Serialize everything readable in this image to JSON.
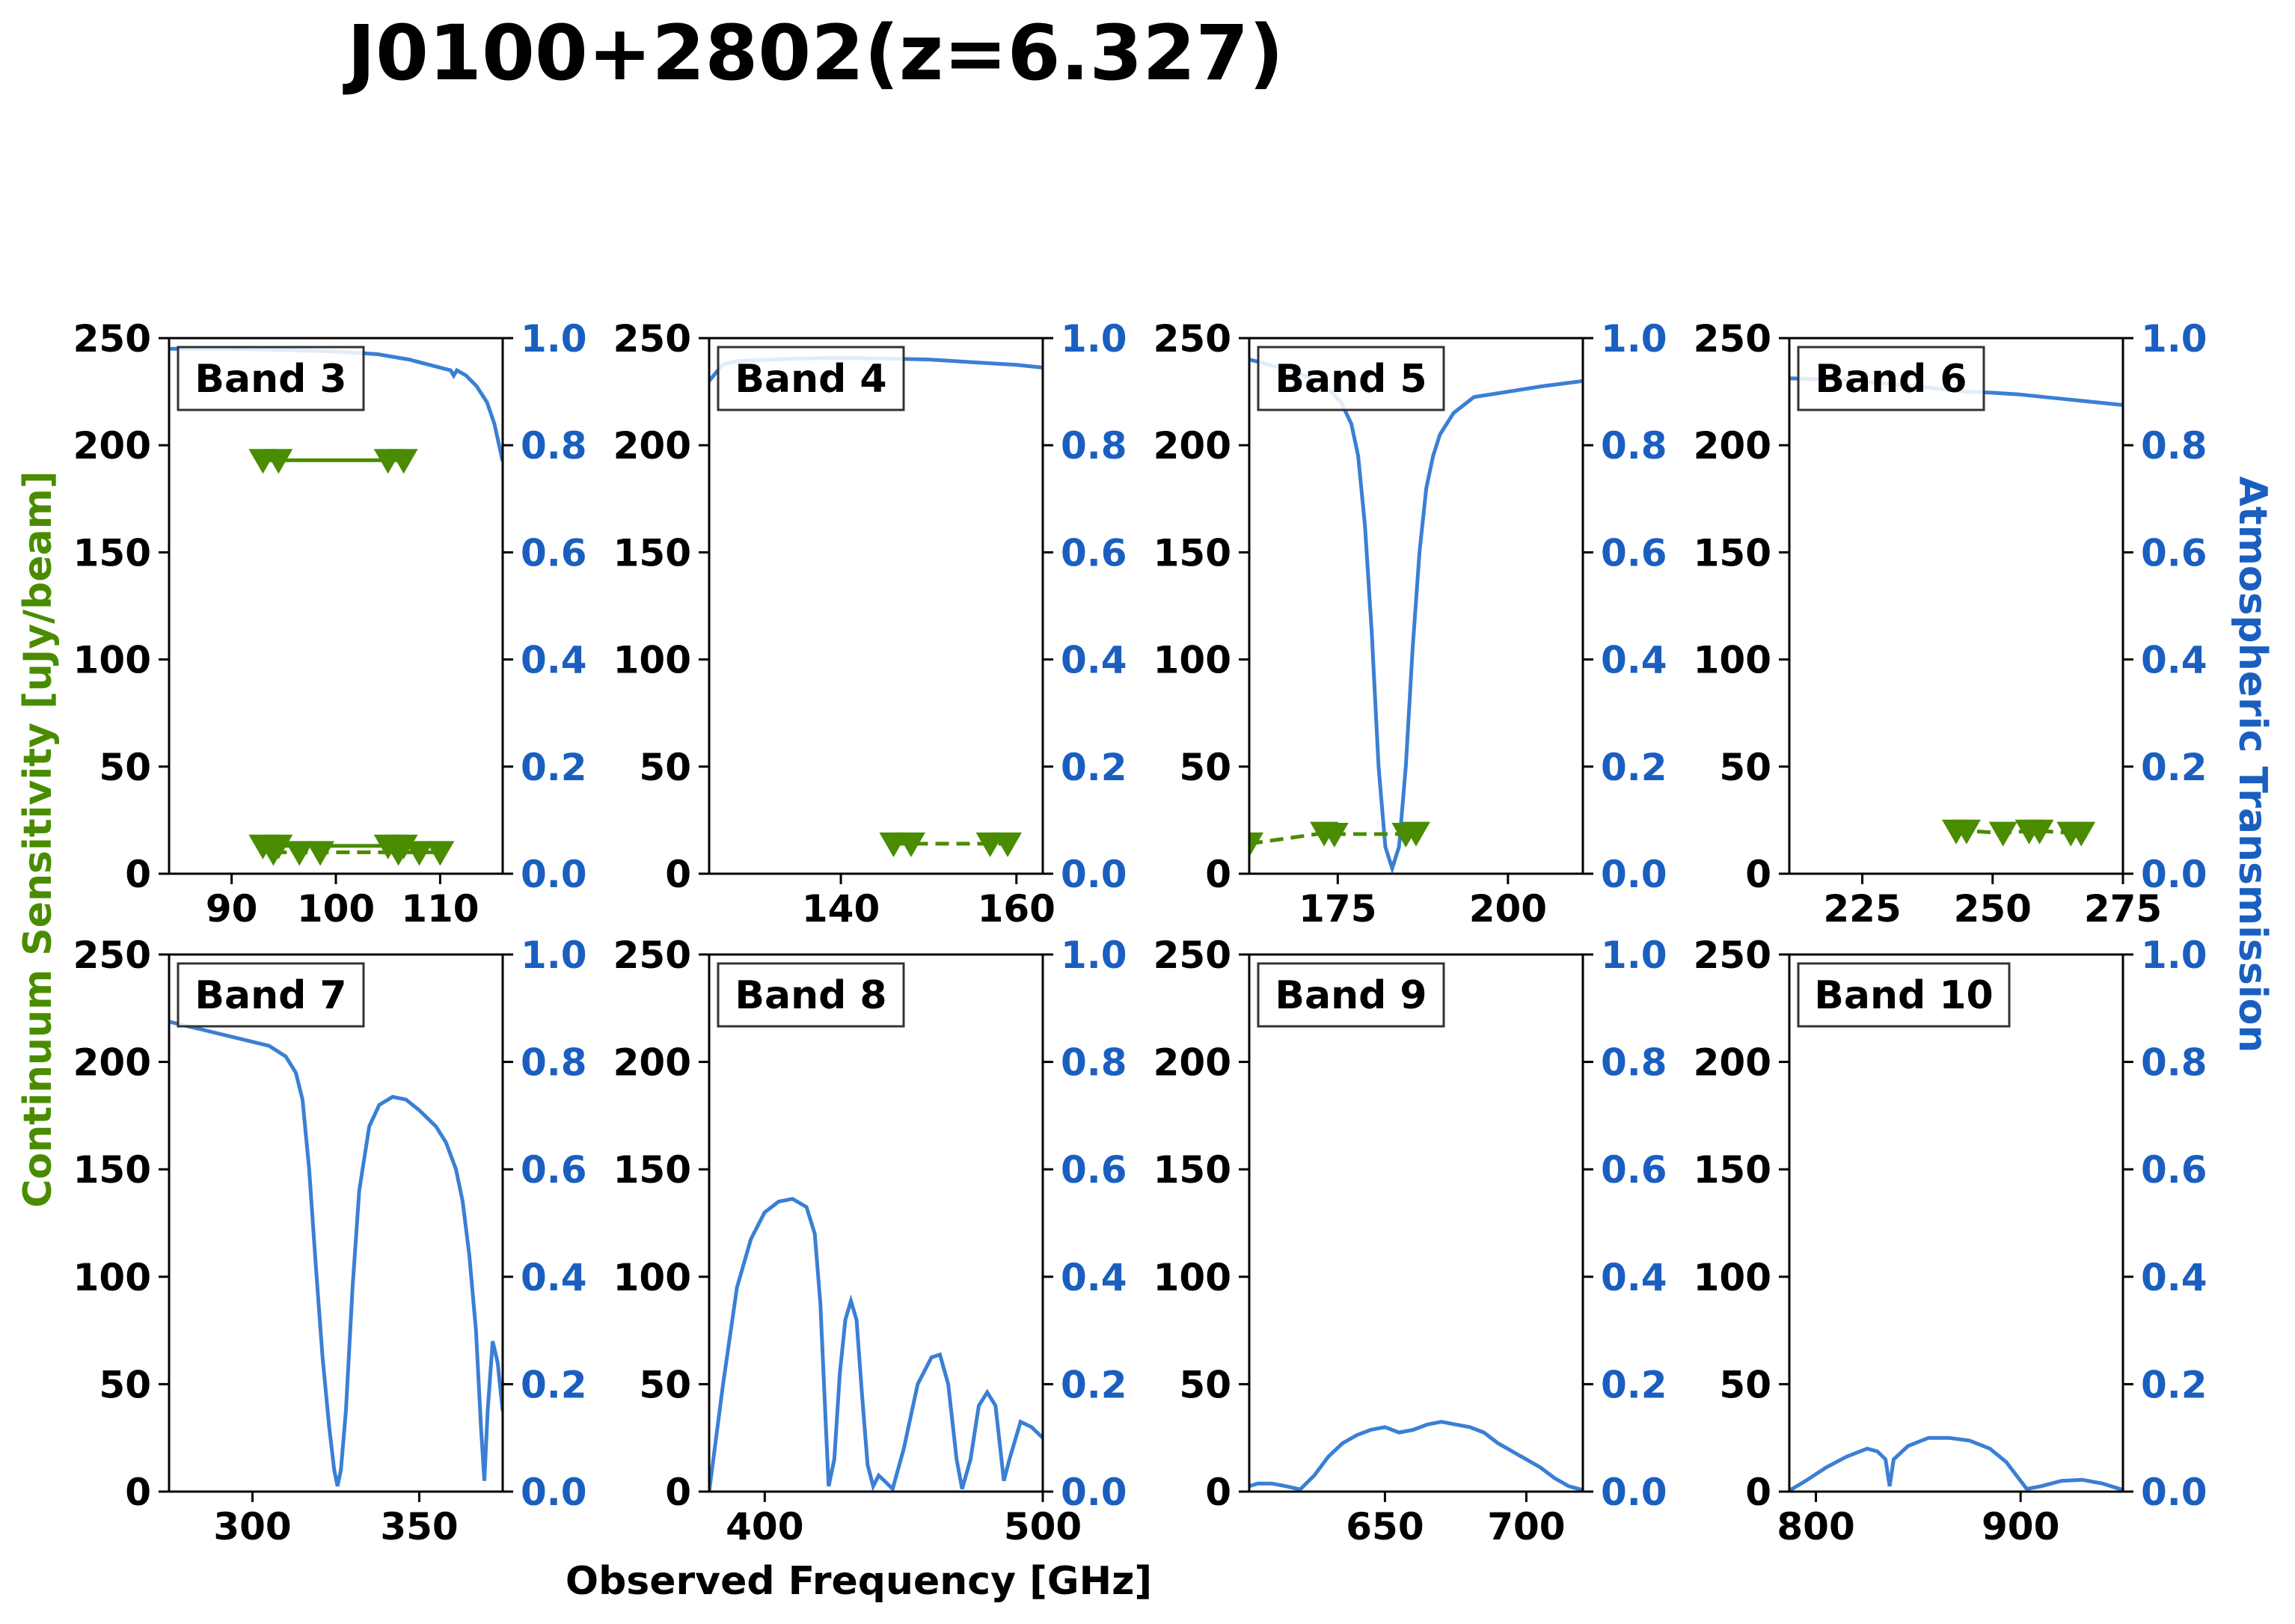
{
  "figure": {
    "title": "J0100+2802(z=6.327)",
    "xlabel": "Observed Frequency [GHz]",
    "ylabel_left": "Continuum Sensitivity [uJy/beam]",
    "ylabel_right": "Atmospheric Transmission",
    "colors": {
      "sensitivity": "#4a8c00",
      "transmission": "#3a7fd4",
      "right_axis": "#1a5fc0"
    }
  },
  "chart_data": [
    {
      "type": "line",
      "band_label": "Band 3",
      "xlim": [
        84,
        116
      ],
      "xticks": [
        90,
        100,
        110
      ],
      "ylim": [
        0,
        250
      ],
      "yticks": [
        0,
        50,
        100,
        150,
        200,
        250
      ],
      "y2lim": [
        0,
        1.0
      ],
      "y2ticks": [
        "0.0",
        "0.2",
        "0.4",
        "0.6",
        "0.8",
        "1.0"
      ],
      "transmission": [
        [
          84,
          0.98
        ],
        [
          90,
          0.98
        ],
        [
          95,
          0.978
        ],
        [
          100,
          0.975
        ],
        [
          104,
          0.97
        ],
        [
          107,
          0.96
        ],
        [
          109,
          0.95
        ],
        [
          110,
          0.945
        ],
        [
          111,
          0.94
        ],
        [
          111.3,
          0.93
        ],
        [
          111.6,
          0.94
        ],
        [
          112.5,
          0.93
        ],
        [
          113.5,
          0.91
        ],
        [
          114.5,
          0.88
        ],
        [
          115.2,
          0.84
        ],
        [
          116,
          0.77
        ]
      ],
      "sensitivity_series": [
        {
          "style": "solid",
          "points": [
            [
              93,
              193
            ],
            [
              94.5,
              193
            ],
            [
              105,
              193
            ],
            [
              106.5,
              193
            ]
          ]
        },
        {
          "style": "solid",
          "points": [
            [
              93,
              13
            ],
            [
              94.5,
              13
            ],
            [
              105,
              13
            ],
            [
              106.5,
              13
            ]
          ]
        },
        {
          "style": "dashed",
          "points": [
            [
              94,
              10
            ],
            [
              96.5,
              10
            ],
            [
              98.5,
              10
            ],
            [
              106,
              10
            ],
            [
              108,
              10
            ],
            [
              110,
              10
            ]
          ]
        }
      ]
    },
    {
      "type": "line",
      "band_label": "Band 4",
      "xlim": [
        125,
        163
      ],
      "xticks": [
        140,
        160
      ],
      "ylim": [
        0,
        250
      ],
      "yticks": [
        0,
        50,
        100,
        150,
        200,
        250
      ],
      "y2lim": [
        0,
        1.0
      ],
      "y2ticks": [
        "0.0",
        "0.2",
        "0.4",
        "0.6",
        "0.8",
        "1.0"
      ],
      "transmission": [
        [
          125,
          0.92
        ],
        [
          126.5,
          0.95
        ],
        [
          128,
          0.957
        ],
        [
          135,
          0.962
        ],
        [
          140,
          0.963
        ],
        [
          145,
          0.962
        ],
        [
          150,
          0.96
        ],
        [
          155,
          0.955
        ],
        [
          160,
          0.95
        ],
        [
          163,
          0.945
        ]
      ],
      "sensitivity_series": [
        {
          "style": "dashed",
          "points": [
            [
              146,
              14
            ],
            [
              148,
              14
            ],
            [
              157,
              14
            ],
            [
              159,
              14
            ]
          ]
        }
      ]
    },
    {
      "type": "line",
      "band_label": "Band 5",
      "xlim": [
        162,
        211
      ],
      "xticks": [
        175,
        200
      ],
      "ylim": [
        0,
        250
      ],
      "yticks": [
        0,
        50,
        100,
        150,
        200,
        250
      ],
      "y2lim": [
        0,
        1.0
      ],
      "y2ticks": [
        "0.0",
        "0.2",
        "0.4",
        "0.6",
        "0.8",
        "1.0"
      ],
      "transmission": [
        [
          162,
          0.96
        ],
        [
          165,
          0.95
        ],
        [
          168,
          0.94
        ],
        [
          170,
          0.93
        ],
        [
          172,
          0.92
        ],
        [
          174,
          0.9
        ],
        [
          175.5,
          0.88
        ],
        [
          177,
          0.84
        ],
        [
          178,
          0.78
        ],
        [
          179,
          0.65
        ],
        [
          180,
          0.45
        ],
        [
          181,
          0.2
        ],
        [
          182,
          0.05
        ],
        [
          183,
          0.01
        ],
        [
          184,
          0.05
        ],
        [
          185,
          0.2
        ],
        [
          186,
          0.42
        ],
        [
          187,
          0.6
        ],
        [
          188,
          0.72
        ],
        [
          189,
          0.78
        ],
        [
          190,
          0.82
        ],
        [
          192,
          0.86
        ],
        [
          195,
          0.89
        ],
        [
          200,
          0.9
        ],
        [
          205,
          0.91
        ],
        [
          208,
          0.915
        ],
        [
          211,
          0.92
        ]
      ],
      "sensitivity_series": [
        {
          "style": "dashed",
          "points": [
            [
              162,
              14
            ],
            [
              173,
              19
            ],
            [
              174.5,
              18.5
            ],
            [
              185,
              18.5
            ],
            [
              186.5,
              19
            ]
          ]
        }
      ]
    },
    {
      "type": "line",
      "band_label": "Band 6",
      "xlim": [
        211,
        275
      ],
      "xticks": [
        225,
        250,
        275
      ],
      "ylim": [
        0,
        250
      ],
      "yticks": [
        0,
        50,
        100,
        150,
        200,
        250
      ],
      "y2lim": [
        0,
        1.0
      ],
      "y2ticks": [
        "0.0",
        "0.2",
        "0.4",
        "0.6",
        "0.8",
        "1.0"
      ],
      "transmission": [
        [
          211,
          0.925
        ],
        [
          220,
          0.922
        ],
        [
          230,
          0.915
        ],
        [
          235,
          0.91
        ],
        [
          240,
          0.905
        ],
        [
          245,
          0.9
        ],
        [
          250,
          0.898
        ],
        [
          255,
          0.895
        ],
        [
          260,
          0.89
        ],
        [
          265,
          0.885
        ],
        [
          270,
          0.88
        ],
        [
          275,
          0.875
        ]
      ],
      "sensitivity_series": [
        {
          "style": "dashed",
          "points": [
            [
              243,
              20
            ],
            [
              245,
              20
            ],
            [
              252,
              19
            ],
            [
              257,
              20
            ],
            [
              259,
              20
            ],
            [
              265,
              19
            ],
            [
              267,
              19
            ]
          ]
        }
      ]
    },
    {
      "type": "line",
      "band_label": "Band 7",
      "xlim": [
        275,
        375
      ],
      "xticks": [
        300,
        350
      ],
      "ylim": [
        0,
        250
      ],
      "yticks": [
        0,
        50,
        100,
        150,
        200,
        250
      ],
      "y2lim": [
        0,
        1.0
      ],
      "y2ticks": [
        "0.0",
        "0.2",
        "0.4",
        "0.6",
        "0.8",
        "1.0"
      ],
      "transmission": [
        [
          275,
          0.875
        ],
        [
          285,
          0.86
        ],
        [
          295,
          0.845
        ],
        [
          305,
          0.83
        ],
        [
          310,
          0.81
        ],
        [
          313,
          0.78
        ],
        [
          315,
          0.73
        ],
        [
          317,
          0.6
        ],
        [
          319,
          0.42
        ],
        [
          321,
          0.25
        ],
        [
          323,
          0.12
        ],
        [
          324.5,
          0.04
        ],
        [
          325.5,
          0.01
        ],
        [
          326.5,
          0.04
        ],
        [
          328,
          0.15
        ],
        [
          330,
          0.38
        ],
        [
          332,
          0.56
        ],
        [
          335,
          0.68
        ],
        [
          338,
          0.72
        ],
        [
          342,
          0.735
        ],
        [
          346,
          0.73
        ],
        [
          350,
          0.71
        ],
        [
          355,
          0.68
        ],
        [
          358,
          0.65
        ],
        [
          361,
          0.6
        ],
        [
          363,
          0.54
        ],
        [
          365,
          0.44
        ],
        [
          367,
          0.3
        ],
        [
          368.5,
          0.12
        ],
        [
          369.5,
          0.02
        ],
        [
          370.5,
          0.15
        ],
        [
          372,
          0.28
        ],
        [
          373.5,
          0.24
        ],
        [
          375,
          0.15
        ]
      ],
      "sensitivity_series": []
    },
    {
      "type": "line",
      "band_label": "Band 8",
      "xlim": [
        380,
        500
      ],
      "xticks": [
        400,
        500
      ],
      "ylim": [
        0,
        250
      ],
      "yticks": [
        0,
        50,
        100,
        150,
        200,
        250
      ],
      "y2lim": [
        0,
        1.0
      ],
      "y2ticks": [
        "0.0",
        "0.2",
        "0.4",
        "0.6",
        "0.8",
        "1.0"
      ],
      "transmission": [
        [
          380,
          0.0
        ],
        [
          385,
          0.2
        ],
        [
          390,
          0.38
        ],
        [
          395,
          0.47
        ],
        [
          400,
          0.52
        ],
        [
          405,
          0.54
        ],
        [
          410,
          0.545
        ],
        [
          415,
          0.53
        ],
        [
          418,
          0.48
        ],
        [
          420,
          0.35
        ],
        [
          422,
          0.12
        ],
        [
          423,
          0.01
        ],
        [
          425,
          0.06
        ],
        [
          427,
          0.22
        ],
        [
          429,
          0.32
        ],
        [
          431,
          0.355
        ],
        [
          433,
          0.32
        ],
        [
          435,
          0.18
        ],
        [
          437,
          0.05
        ],
        [
          439,
          0.01
        ],
        [
          441,
          0.03
        ],
        [
          443,
          0.02
        ],
        [
          446,
          0.005
        ],
        [
          450,
          0.08
        ],
        [
          455,
          0.2
        ],
        [
          460,
          0.25
        ],
        [
          463,
          0.255
        ],
        [
          466,
          0.2
        ],
        [
          469,
          0.06
        ],
        [
          471,
          0.005
        ],
        [
          474,
          0.06
        ],
        [
          477,
          0.16
        ],
        [
          480,
          0.185
        ],
        [
          483,
          0.16
        ],
        [
          486,
          0.02
        ],
        [
          488,
          0.06
        ],
        [
          492,
          0.13
        ],
        [
          496,
          0.12
        ],
        [
          500,
          0.1
        ]
      ],
      "sensitivity_series": []
    },
    {
      "type": "line",
      "band_label": "Band 9",
      "xlim": [
        602,
        720
      ],
      "xticks": [
        650,
        700
      ],
      "ylim": [
        0,
        250
      ],
      "yticks": [
        0,
        50,
        100,
        150,
        200,
        250
      ],
      "y2lim": [
        0,
        1.0
      ],
      "y2ticks": [
        "0.0",
        "0.2",
        "0.4",
        "0.6",
        "0.8",
        "1.0"
      ],
      "transmission": [
        [
          602,
          0.01
        ],
        [
          605,
          0.015
        ],
        [
          610,
          0.015
        ],
        [
          615,
          0.01
        ],
        [
          620,
          0.004
        ],
        [
          625,
          0.03
        ],
        [
          630,
          0.065
        ],
        [
          635,
          0.09
        ],
        [
          640,
          0.105
        ],
        [
          645,
          0.115
        ],
        [
          650,
          0.12
        ],
        [
          655,
          0.11
        ],
        [
          660,
          0.115
        ],
        [
          665,
          0.125
        ],
        [
          670,
          0.13
        ],
        [
          675,
          0.125
        ],
        [
          680,
          0.12
        ],
        [
          685,
          0.11
        ],
        [
          690,
          0.09
        ],
        [
          695,
          0.075
        ],
        [
          700,
          0.06
        ],
        [
          705,
          0.045
        ],
        [
          710,
          0.025
        ],
        [
          715,
          0.01
        ],
        [
          720,
          0.003
        ]
      ],
      "sensitivity_series": []
    },
    {
      "type": "line",
      "band_label": "Band 10",
      "xlim": [
        787,
        950
      ],
      "xticks": [
        800,
        900
      ],
      "ylim": [
        0,
        250
      ],
      "yticks": [
        0,
        50,
        100,
        150,
        200,
        250
      ],
      "y2lim": [
        0,
        1.0
      ],
      "y2ticks": [
        "0.0",
        "0.2",
        "0.4",
        "0.6",
        "0.8",
        "1.0"
      ],
      "transmission": [
        [
          787,
          0.002
        ],
        [
          795,
          0.02
        ],
        [
          805,
          0.045
        ],
        [
          815,
          0.065
        ],
        [
          825,
          0.08
        ],
        [
          830,
          0.075
        ],
        [
          834,
          0.06
        ],
        [
          836,
          0.01
        ],
        [
          838,
          0.06
        ],
        [
          845,
          0.085
        ],
        [
          855,
          0.1
        ],
        [
          865,
          0.1
        ],
        [
          875,
          0.095
        ],
        [
          885,
          0.08
        ],
        [
          893,
          0.055
        ],
        [
          898,
          0.03
        ],
        [
          903,
          0.005
        ],
        [
          910,
          0.01
        ],
        [
          920,
          0.02
        ],
        [
          930,
          0.022
        ],
        [
          940,
          0.015
        ],
        [
          950,
          0.003
        ]
      ],
      "sensitivity_series": []
    }
  ]
}
